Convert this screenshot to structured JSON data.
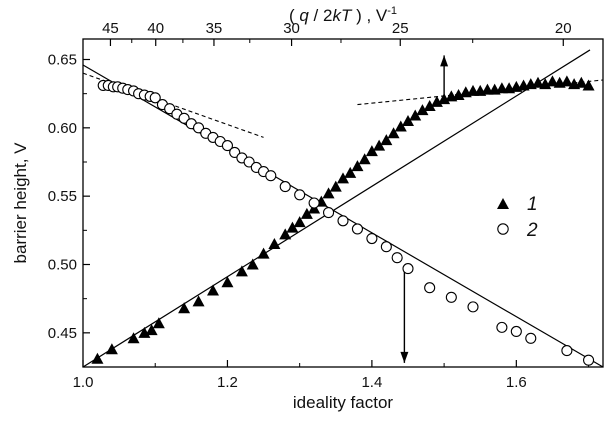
{
  "chart_data": {
    "type": "scatter",
    "xlabel": "ideality factor",
    "ylabel": "barrier height, V",
    "top_label_prefix": "( ",
    "top_label_q": "q",
    "top_label_mid": " / 2",
    "top_label_kT": "kT",
    "top_label_close": " ) , V",
    "top_label_sup": "-1",
    "xlim": [
      1.0,
      1.72
    ],
    "ylim": [
      0.425,
      0.665
    ],
    "x_ticks": [
      "1.0",
      "1.2",
      "1.4",
      "1.6"
    ],
    "x_tick_values": [
      1.0,
      1.2,
      1.4,
      1.6
    ],
    "y_ticks": [
      "0.45",
      "0.50",
      "0.55",
      "0.60",
      "0.65"
    ],
    "y_tick_values": [
      0.45,
      0.5,
      0.55,
      0.6,
      0.65
    ],
    "top_ticks": [
      "45",
      "40",
      "35",
      "30",
      "25",
      "20"
    ],
    "top_tick_values": [
      45,
      40,
      35,
      30,
      25,
      20
    ],
    "grid": false,
    "legend_position": "right",
    "series": [
      {
        "name": "1",
        "marker": "filled-triangle",
        "color": "#000000",
        "x": [
          1.02,
          1.04,
          1.07,
          1.085,
          1.095,
          1.105,
          1.14,
          1.16,
          1.18,
          1.2,
          1.22,
          1.235,
          1.25,
          1.265,
          1.28,
          1.29,
          1.3,
          1.31,
          1.32,
          1.33,
          1.34,
          1.35,
          1.36,
          1.37,
          1.38,
          1.39,
          1.4,
          1.41,
          1.42,
          1.43,
          1.44,
          1.45,
          1.46,
          1.47,
          1.48,
          1.49,
          1.5,
          1.51,
          1.52,
          1.53,
          1.54,
          1.55,
          1.56,
          1.57,
          1.58,
          1.59,
          1.6,
          1.61,
          1.62,
          1.63,
          1.64,
          1.65,
          1.66,
          1.67,
          1.68,
          1.69,
          1.7
        ],
        "y": [
          0.431,
          0.438,
          0.446,
          0.45,
          0.452,
          0.457,
          0.468,
          0.473,
          0.481,
          0.487,
          0.495,
          0.5,
          0.508,
          0.515,
          0.522,
          0.527,
          0.531,
          0.537,
          0.541,
          0.546,
          0.552,
          0.557,
          0.563,
          0.567,
          0.572,
          0.577,
          0.583,
          0.587,
          0.591,
          0.596,
          0.601,
          0.605,
          0.609,
          0.613,
          0.616,
          0.619,
          0.621,
          0.623,
          0.624,
          0.626,
          0.627,
          0.627,
          0.628,
          0.628,
          0.629,
          0.629,
          0.63,
          0.631,
          0.632,
          0.633,
          0.632,
          0.634,
          0.633,
          0.634,
          0.632,
          0.633,
          0.631
        ]
      },
      {
        "name": "2",
        "marker": "open-circle",
        "color": "#000000",
        "x": [
          1.028,
          1.035,
          1.042,
          1.048,
          1.055,
          1.062,
          1.07,
          1.077,
          1.085,
          1.093,
          1.1,
          1.11,
          1.12,
          1.13,
          1.14,
          1.15,
          1.16,
          1.17,
          1.18,
          1.19,
          1.2,
          1.21,
          1.22,
          1.23,
          1.24,
          1.25,
          1.26,
          1.28,
          1.3,
          1.32,
          1.34,
          1.36,
          1.38,
          1.4,
          1.42,
          1.435,
          1.45,
          1.48,
          1.51,
          1.54,
          1.58,
          1.6,
          1.62,
          1.67,
          1.7
        ],
        "y": [
          0.631,
          0.631,
          0.63,
          0.63,
          0.629,
          0.628,
          0.627,
          0.625,
          0.624,
          0.623,
          0.622,
          0.617,
          0.614,
          0.61,
          0.607,
          0.603,
          0.6,
          0.596,
          0.593,
          0.59,
          0.587,
          0.582,
          0.578,
          0.575,
          0.571,
          0.568,
          0.565,
          0.557,
          0.551,
          0.545,
          0.538,
          0.532,
          0.526,
          0.519,
          0.513,
          0.505,
          0.497,
          0.483,
          0.476,
          0.469,
          0.454,
          0.451,
          0.446,
          0.437,
          0.43
        ]
      }
    ],
    "fit_lines": [
      {
        "x": [
          1.0,
          1.702
        ],
        "y": [
          0.416,
          0.657
        ]
      },
      {
        "x": [
          1.0,
          1.72
        ],
        "y": [
          0.646,
          0.406
        ]
      }
    ],
    "dashed_lines": [
      {
        "x": [
          1.0,
          1.25
        ],
        "y": [
          0.64,
          0.593
        ]
      },
      {
        "x": [
          1.38,
          1.72
        ],
        "y": [
          0.617,
          0.635
        ]
      }
    ],
    "arrows": [
      {
        "x": 1.5,
        "y_from": 0.622,
        "y_to": 0.653,
        "direction": "up"
      },
      {
        "x": 1.445,
        "y_from": 0.498,
        "y_to": 0.428,
        "direction": "down"
      }
    ]
  }
}
